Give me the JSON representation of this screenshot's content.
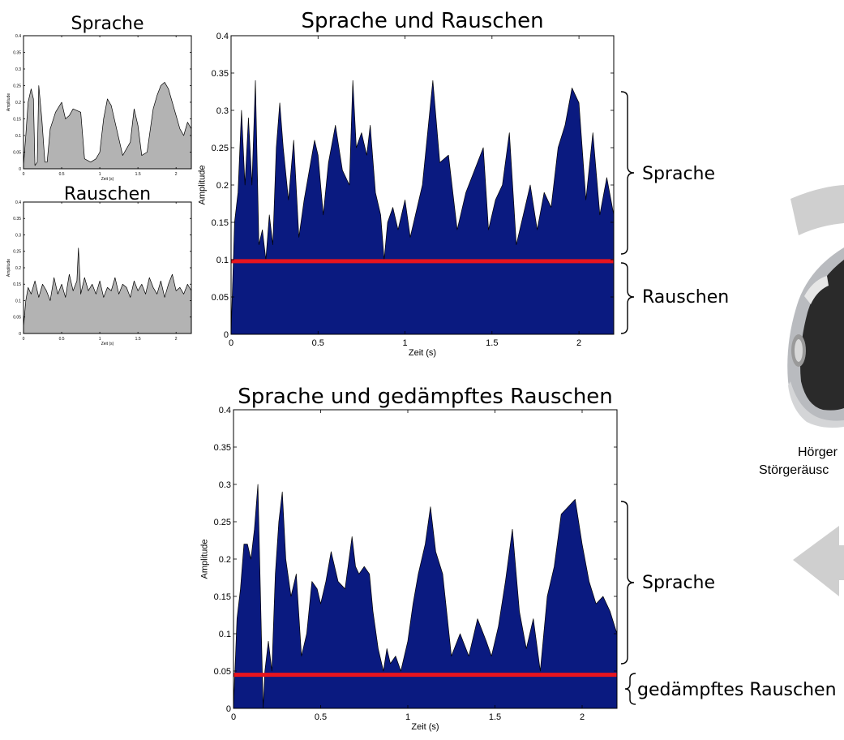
{
  "chart_data": [
    {
      "id": "speech",
      "type": "area",
      "title": "Sprache",
      "xlabel": "Zeit (s)",
      "ylabel": "Amplitude",
      "xlim": [
        0,
        2.2
      ],
      "ylim": [
        0,
        0.4
      ],
      "xticks": [
        0,
        0.5,
        1,
        1.5,
        2
      ],
      "xtick_labels": [
        "0",
        "0.5",
        "1",
        "1.5",
        "2"
      ],
      "yticks": [
        0,
        0.05,
        0.1,
        0.15,
        0.2,
        0.25,
        0.3,
        0.35,
        0.4
      ],
      "ytick_labels": [
        "0",
        "0.05",
        "0.1",
        "0.15",
        "0.2",
        "0.25",
        "0.3",
        "0.35",
        "0.4"
      ],
      "color": "#b3b3b3",
      "x": [
        0,
        0.03,
        0.06,
        0.1,
        0.13,
        0.15,
        0.18,
        0.2,
        0.24,
        0.28,
        0.31,
        0.35,
        0.42,
        0.5,
        0.55,
        0.6,
        0.65,
        0.75,
        0.8,
        0.88,
        0.95,
        1.0,
        1.05,
        1.1,
        1.15,
        1.2,
        1.3,
        1.4,
        1.45,
        1.5,
        1.55,
        1.62,
        1.7,
        1.75,
        1.8,
        1.85,
        1.9,
        1.95,
        2.0,
        2.05,
        2.1,
        2.15,
        2.2
      ],
      "y": [
        0.01,
        0.1,
        0.2,
        0.24,
        0.21,
        0.01,
        0.02,
        0.25,
        0.15,
        0.02,
        0.02,
        0.12,
        0.17,
        0.2,
        0.15,
        0.16,
        0.18,
        0.17,
        0.03,
        0.02,
        0.03,
        0.05,
        0.15,
        0.21,
        0.19,
        0.14,
        0.04,
        0.08,
        0.18,
        0.13,
        0.04,
        0.05,
        0.18,
        0.22,
        0.25,
        0.26,
        0.24,
        0.2,
        0.16,
        0.12,
        0.1,
        0.14,
        0.12
      ]
    },
    {
      "id": "noise",
      "type": "area",
      "title": "Rauschen",
      "xlabel": "Zeit (s)",
      "ylabel": "Amplitude",
      "xlim": [
        0,
        2.2
      ],
      "ylim": [
        0,
        0.4
      ],
      "xticks": [
        0,
        0.5,
        1,
        1.5,
        2
      ],
      "xtick_labels": [
        "0",
        "0.5",
        "1",
        "1.5",
        "2"
      ],
      "yticks": [
        0,
        0.05,
        0.1,
        0.15,
        0.2,
        0.25,
        0.3,
        0.35,
        0.4
      ],
      "ytick_labels": [
        "0",
        "0.05",
        "0.1",
        "0.15",
        "0.2",
        "0.25",
        "0.3",
        "0.35",
        "0.4"
      ],
      "color": "#b3b3b3",
      "x": [
        0,
        0.03,
        0.06,
        0.1,
        0.15,
        0.2,
        0.25,
        0.3,
        0.35,
        0.4,
        0.45,
        0.5,
        0.55,
        0.6,
        0.65,
        0.7,
        0.72,
        0.75,
        0.8,
        0.85,
        0.9,
        0.95,
        1.0,
        1.05,
        1.1,
        1.15,
        1.2,
        1.25,
        1.3,
        1.35,
        1.4,
        1.45,
        1.5,
        1.55,
        1.6,
        1.65,
        1.7,
        1.75,
        1.8,
        1.85,
        1.9,
        1.95,
        2.0,
        2.05,
        2.1,
        2.15,
        2.2
      ],
      "y": [
        0.02,
        0.1,
        0.14,
        0.12,
        0.16,
        0.11,
        0.15,
        0.13,
        0.1,
        0.17,
        0.12,
        0.15,
        0.11,
        0.18,
        0.13,
        0.16,
        0.26,
        0.12,
        0.17,
        0.13,
        0.15,
        0.12,
        0.16,
        0.11,
        0.14,
        0.13,
        0.17,
        0.12,
        0.15,
        0.14,
        0.11,
        0.16,
        0.13,
        0.15,
        0.12,
        0.17,
        0.14,
        0.12,
        0.16,
        0.11,
        0.15,
        0.18,
        0.13,
        0.14,
        0.12,
        0.15,
        0.13
      ]
    },
    {
      "id": "speech_noise",
      "type": "area",
      "title": "Sprache und Rauschen",
      "xlabel": "Zeit (s)",
      "ylabel": "Amplitude",
      "xlim": [
        0,
        2.2
      ],
      "ylim": [
        0,
        0.4
      ],
      "xticks": [
        0,
        0.5,
        1,
        1.5,
        2
      ],
      "xtick_labels": [
        "0",
        "0.5",
        "1",
        "1.5",
        "2"
      ],
      "yticks": [
        0,
        0.05,
        0.1,
        0.15,
        0.2,
        0.25,
        0.3,
        0.35,
        0.4
      ],
      "ytick_labels": [
        "0",
        "0.05",
        "0.1",
        "0.15",
        "0.2",
        "0.25",
        "0.3",
        "0.35",
        "0.4"
      ],
      "color": "#0a1a80",
      "threshold": 0.098,
      "threshold_color": "#e8141e",
      "x": [
        0,
        0.02,
        0.04,
        0.06,
        0.08,
        0.1,
        0.12,
        0.14,
        0.16,
        0.18,
        0.2,
        0.22,
        0.24,
        0.26,
        0.28,
        0.3,
        0.33,
        0.36,
        0.39,
        0.42,
        0.45,
        0.48,
        0.5,
        0.53,
        0.56,
        0.6,
        0.64,
        0.68,
        0.7,
        0.72,
        0.75,
        0.78,
        0.8,
        0.83,
        0.86,
        0.88,
        0.9,
        0.93,
        0.96,
        1.0,
        1.03,
        1.06,
        1.1,
        1.13,
        1.16,
        1.2,
        1.25,
        1.3,
        1.35,
        1.4,
        1.45,
        1.48,
        1.52,
        1.56,
        1.6,
        1.64,
        1.68,
        1.72,
        1.76,
        1.8,
        1.84,
        1.88,
        1.92,
        1.96,
        2.0,
        2.04,
        2.08,
        2.12,
        2.16,
        2.2
      ],
      "y": [
        0.0,
        0.15,
        0.19,
        0.3,
        0.2,
        0.29,
        0.2,
        0.34,
        0.12,
        0.14,
        0.1,
        0.16,
        0.12,
        0.25,
        0.31,
        0.25,
        0.18,
        0.26,
        0.13,
        0.18,
        0.22,
        0.26,
        0.24,
        0.16,
        0.23,
        0.28,
        0.22,
        0.2,
        0.34,
        0.25,
        0.27,
        0.24,
        0.28,
        0.19,
        0.16,
        0.1,
        0.15,
        0.17,
        0.14,
        0.18,
        0.13,
        0.16,
        0.2,
        0.27,
        0.34,
        0.23,
        0.24,
        0.14,
        0.19,
        0.22,
        0.25,
        0.14,
        0.18,
        0.2,
        0.27,
        0.12,
        0.16,
        0.2,
        0.14,
        0.19,
        0.17,
        0.25,
        0.28,
        0.33,
        0.31,
        0.18,
        0.27,
        0.16,
        0.21,
        0.16
      ]
    },
    {
      "id": "speech_damped",
      "type": "area",
      "title": "Sprache und gedämpftes Rauschen",
      "xlabel": "Zeit (s)",
      "ylabel": "Amplitude",
      "xlim": [
        0,
        2.2
      ],
      "ylim": [
        0,
        0.4
      ],
      "xticks": [
        0,
        0.5,
        1,
        1.5,
        2
      ],
      "xtick_labels": [
        "0",
        "0.5",
        "1",
        "1.5",
        "2"
      ],
      "yticks": [
        0,
        0.05,
        0.1,
        0.15,
        0.2,
        0.25,
        0.3,
        0.35,
        0.4
      ],
      "ytick_labels": [
        "0",
        "0.05",
        "0.1",
        "0.15",
        "0.2",
        "0.25",
        "0.3",
        "0.35",
        "0.4"
      ],
      "color": "#0a1a80",
      "threshold": 0.045,
      "threshold_color": "#e8141e",
      "x": [
        0,
        0.02,
        0.04,
        0.06,
        0.08,
        0.1,
        0.12,
        0.14,
        0.16,
        0.17,
        0.18,
        0.2,
        0.22,
        0.24,
        0.26,
        0.28,
        0.3,
        0.33,
        0.36,
        0.39,
        0.42,
        0.45,
        0.48,
        0.5,
        0.53,
        0.56,
        0.6,
        0.64,
        0.68,
        0.7,
        0.72,
        0.75,
        0.78,
        0.8,
        0.83,
        0.86,
        0.88,
        0.9,
        0.93,
        0.96,
        1.0,
        1.03,
        1.06,
        1.1,
        1.13,
        1.16,
        1.2,
        1.25,
        1.3,
        1.35,
        1.4,
        1.45,
        1.48,
        1.52,
        1.56,
        1.6,
        1.64,
        1.68,
        1.72,
        1.76,
        1.8,
        1.84,
        1.88,
        1.92,
        1.96,
        2.0,
        2.04,
        2.08,
        2.12,
        2.16,
        2.2
      ],
      "y": [
        0.0,
        0.12,
        0.16,
        0.22,
        0.22,
        0.2,
        0.24,
        0.3,
        0.1,
        0.0,
        0.05,
        0.09,
        0.05,
        0.18,
        0.25,
        0.29,
        0.2,
        0.15,
        0.18,
        0.07,
        0.1,
        0.17,
        0.16,
        0.14,
        0.17,
        0.21,
        0.17,
        0.16,
        0.23,
        0.19,
        0.18,
        0.19,
        0.18,
        0.13,
        0.08,
        0.05,
        0.08,
        0.06,
        0.07,
        0.05,
        0.09,
        0.14,
        0.18,
        0.22,
        0.27,
        0.21,
        0.18,
        0.07,
        0.1,
        0.07,
        0.12,
        0.09,
        0.07,
        0.11,
        0.17,
        0.24,
        0.13,
        0.08,
        0.12,
        0.05,
        0.15,
        0.19,
        0.26,
        0.27,
        0.28,
        0.22,
        0.17,
        0.14,
        0.15,
        0.13,
        0.1
      ]
    }
  ],
  "annotations": {
    "top_speech": "Sprache",
    "top_noise": "Rauschen",
    "bottom_speech": "Sprache",
    "bottom_noise": "gedämpftes Rauschen",
    "device_caption_1": "Hörger",
    "device_caption_2": "Störgeräusc"
  },
  "colors": {
    "arrow_gray": "#cfcfcf",
    "device_silver": "#b9bbbf",
    "device_dark": "#2a2a2a"
  }
}
